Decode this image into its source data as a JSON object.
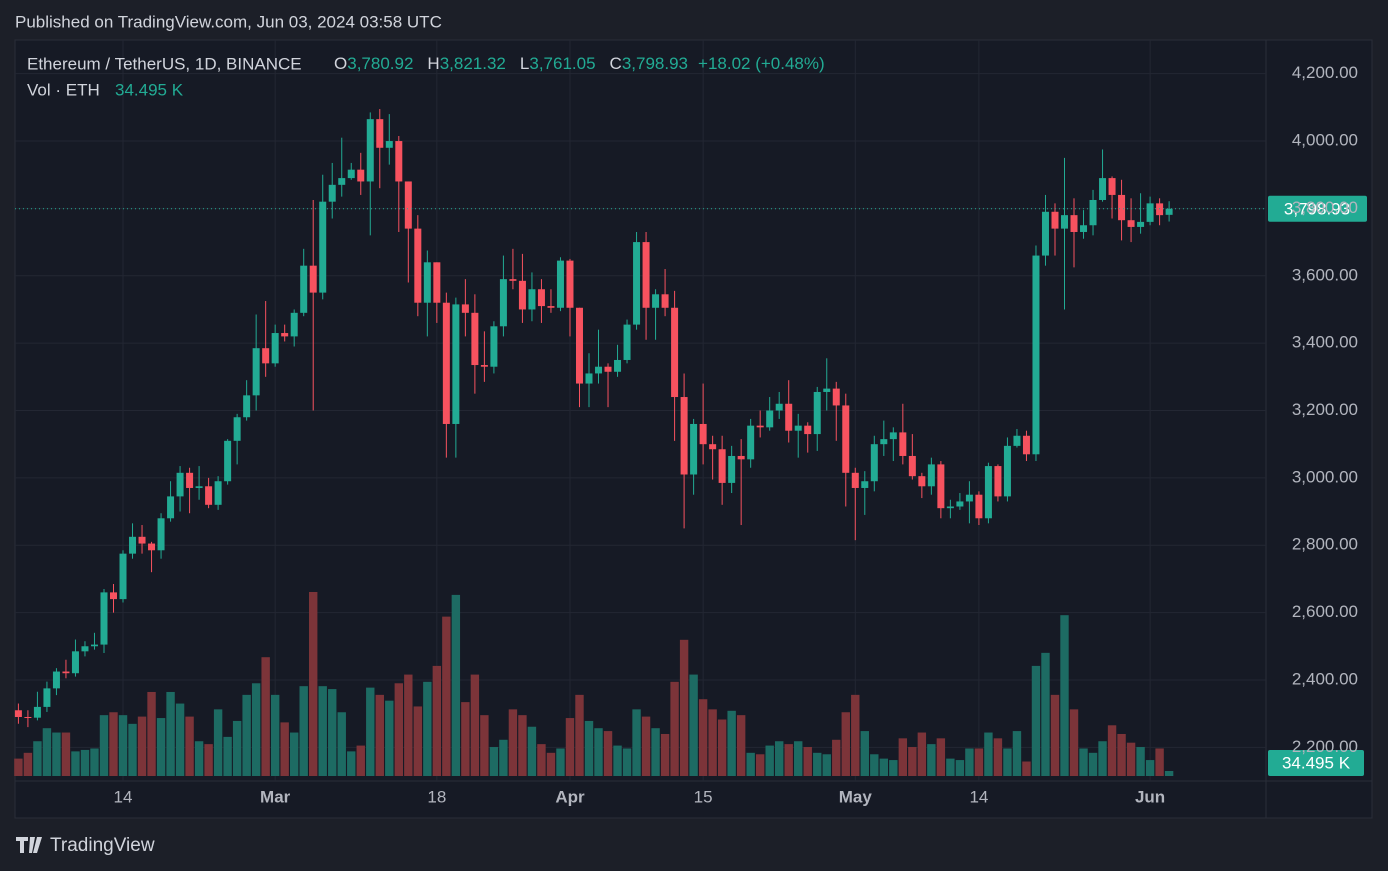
{
  "published": "Published on TradingView.com, Jun 03, 2024 03:58 UTC",
  "brand": "TradingView",
  "chart_data": {
    "type": "candlestick",
    "header": {
      "symbol": "Ethereum / TetherUS, 1D, BINANCE",
      "ohlc": [
        {
          "key": "O",
          "label": "3,780.92"
        },
        {
          "key": "H",
          "label": "3,821.32"
        },
        {
          "key": "L",
          "label": "3,761.05"
        },
        {
          "key": "C",
          "label": "3,798.93"
        }
      ],
      "change": "+18.02 (+0.48%)",
      "vol_label": "Vol · ETH",
      "vol_value": "34.495 K"
    },
    "price_label": "3,798.93",
    "up_color": "#22ab94",
    "down_color": "#f7525f",
    "vol_up_color": "#1d6b63",
    "vol_down_color": "#7c3439",
    "grid": true,
    "ylim": [
      2100,
      4300
    ],
    "yticks": [
      {
        "value": 2200,
        "label": "2,200.00"
      },
      {
        "value": 2400,
        "label": "2,400.00"
      },
      {
        "value": 2600,
        "label": "2,600.00"
      },
      {
        "value": 2800,
        "label": "2,800.00"
      },
      {
        "value": 3000,
        "label": "3,000.00"
      },
      {
        "value": 3200,
        "label": "3,200.00"
      },
      {
        "value": 3400,
        "label": "3,400.00"
      },
      {
        "value": 3600,
        "label": "3,600.00"
      },
      {
        "value": 3800,
        "label": "3,800.00"
      },
      {
        "value": 4000,
        "label": "4,000.00"
      },
      {
        "value": 4200,
        "label": "4,200.00"
      }
    ],
    "xticks": [
      {
        "value": "2024-02-14",
        "label": "14"
      },
      {
        "value": "2024-03-01",
        "label": "Mar"
      },
      {
        "value": "2024-03-18",
        "label": "18"
      },
      {
        "value": "2024-04-01",
        "label": "Apr"
      },
      {
        "value": "2024-04-15",
        "label": "15"
      },
      {
        "value": "2024-05-01",
        "label": "May"
      },
      {
        "value": "2024-05-14",
        "label": "14"
      },
      {
        "value": "2024-06-01",
        "label": "Jun"
      }
    ],
    "x": [
      "2024-02-03",
      "2024-02-04",
      "2024-02-05",
      "2024-02-06",
      "2024-02-07",
      "2024-02-08",
      "2024-02-09",
      "2024-02-10",
      "2024-02-11",
      "2024-02-12",
      "2024-02-13",
      "2024-02-14",
      "2024-02-15",
      "2024-02-16",
      "2024-02-17",
      "2024-02-18",
      "2024-02-19",
      "2024-02-20",
      "2024-02-21",
      "2024-02-22",
      "2024-02-23",
      "2024-02-24",
      "2024-02-25",
      "2024-02-26",
      "2024-02-27",
      "2024-02-28",
      "2024-02-29",
      "2024-03-01",
      "2024-03-02",
      "2024-03-03",
      "2024-03-04",
      "2024-03-05",
      "2024-03-06",
      "2024-03-07",
      "2024-03-08",
      "2024-03-09",
      "2024-03-10",
      "2024-03-11",
      "2024-03-12",
      "2024-03-13",
      "2024-03-14",
      "2024-03-15",
      "2024-03-16",
      "2024-03-17",
      "2024-03-18",
      "2024-03-19",
      "2024-03-20",
      "2024-03-21",
      "2024-03-22",
      "2024-03-23",
      "2024-03-24",
      "2024-03-25",
      "2024-03-26",
      "2024-03-27",
      "2024-03-28",
      "2024-03-29",
      "2024-03-30",
      "2024-03-31",
      "2024-04-01",
      "2024-04-02",
      "2024-04-03",
      "2024-04-04",
      "2024-04-05",
      "2024-04-06",
      "2024-04-07",
      "2024-04-08",
      "2024-04-09",
      "2024-04-10",
      "2024-04-11",
      "2024-04-12",
      "2024-04-13",
      "2024-04-14",
      "2024-04-15",
      "2024-04-16",
      "2024-04-17",
      "2024-04-18",
      "2024-04-19",
      "2024-04-20",
      "2024-04-21",
      "2024-04-22",
      "2024-04-23",
      "2024-04-24",
      "2024-04-25",
      "2024-04-26",
      "2024-04-27",
      "2024-04-28",
      "2024-04-29",
      "2024-04-30",
      "2024-05-01",
      "2024-05-02",
      "2024-05-03",
      "2024-05-04",
      "2024-05-05",
      "2024-05-06",
      "2024-05-07",
      "2024-05-08",
      "2024-05-09",
      "2024-05-10",
      "2024-05-11",
      "2024-05-12",
      "2024-05-13",
      "2024-05-14",
      "2024-05-15",
      "2024-05-16",
      "2024-05-17",
      "2024-05-18",
      "2024-05-19",
      "2024-05-20",
      "2024-05-21",
      "2024-05-22",
      "2024-05-23",
      "2024-05-24",
      "2024-05-25",
      "2024-05-26",
      "2024-05-27",
      "2024-05-28",
      "2024-05-29",
      "2024-05-30",
      "2024-05-31",
      "2024-06-01",
      "2024-06-02",
      "2024-06-03"
    ],
    "open": [
      2310,
      2290,
      2288,
      2320,
      2375,
      2425,
      2420,
      2485,
      2500,
      2505,
      2660,
      2640,
      2775,
      2825,
      2805,
      2785,
      2880,
      2945,
      3015,
      2970,
      2975,
      2920,
      2990,
      3110,
      3180,
      3245,
      3385,
      3340,
      3430,
      3420,
      3490,
      3630,
      3550,
      3820,
      3870,
      3890,
      3915,
      3880,
      4065,
      3980,
      4000,
      3880,
      3740,
      3520,
      3640,
      3520,
      3160,
      3515,
      3490,
      3335,
      3330,
      3450,
      3590,
      3585,
      3500,
      3560,
      3510,
      3505,
      3645,
      3505,
      3280,
      3310,
      3330,
      3315,
      3350,
      3455,
      3700,
      3505,
      3545,
      3505,
      3240,
      3010,
      3160,
      3100,
      3085,
      2985,
      3065,
      3055,
      3155,
      3150,
      3200,
      3220,
      3140,
      3155,
      3130,
      3255,
      3265,
      3215,
      3015,
      2970,
      2990,
      3100,
      3115,
      3135,
      3065,
      3005,
      2975,
      3040,
      2910,
      2915,
      2930,
      2950,
      2880,
      3035,
      2945,
      3095,
      3125,
      3070,
      3660,
      3790,
      3740,
      3780,
      3730,
      3750,
      3825,
      3890,
      3840,
      3765,
      3745,
      3760,
      3815,
      3780.92
    ],
    "high": [
      2330,
      2310,
      2365,
      2395,
      2435,
      2460,
      2520,
      2515,
      2540,
      2670,
      2685,
      2785,
      2865,
      2860,
      2810,
      2895,
      2990,
      3035,
      3030,
      3035,
      3000,
      3005,
      3115,
      3190,
      3290,
      3485,
      3525,
      3455,
      3455,
      3500,
      3680,
      3825,
      3900,
      3935,
      4010,
      3935,
      3965,
      4085,
      4095,
      4080,
      4015,
      3880,
      3780,
      3675,
      3640,
      3550,
      3535,
      3590,
      3545,
      3435,
      3465,
      3660,
      3680,
      3665,
      3610,
      3590,
      3560,
      3655,
      3650,
      3505,
      3370,
      3440,
      3340,
      3395,
      3470,
      3730,
      3730,
      3560,
      3620,
      3555,
      3310,
      3175,
      3280,
      3125,
      3125,
      3095,
      3115,
      3175,
      3200,
      3240,
      3255,
      3290,
      3190,
      3165,
      3270,
      3355,
      3285,
      3250,
      3030,
      3020,
      3125,
      3170,
      3150,
      3220,
      3130,
      3015,
      3060,
      3050,
      2935,
      2955,
      2990,
      2960,
      3045,
      3040,
      3120,
      3145,
      3140,
      3690,
      3840,
      3815,
      3950,
      3830,
      3795,
      3855,
      3975,
      3895,
      3885,
      3830,
      3845,
      3835,
      3830,
      3821.32
    ],
    "low": [
      2270,
      2260,
      2280,
      2305,
      2355,
      2405,
      2410,
      2470,
      2490,
      2480,
      2600,
      2630,
      2760,
      2775,
      2720,
      2760,
      2870,
      2900,
      2895,
      2935,
      2910,
      2905,
      2980,
      3040,
      3170,
      3200,
      3300,
      3330,
      3405,
      3390,
      3480,
      3200,
      3530,
      3770,
      3835,
      3885,
      3840,
      3720,
      3860,
      3930,
      3730,
      3580,
      3480,
      3420,
      3460,
      3060,
      3060,
      3420,
      3250,
      3285,
      3310,
      3420,
      3560,
      3460,
      3465,
      3460,
      3490,
      3495,
      3420,
      3210,
      3210,
      3280,
      3210,
      3300,
      3340,
      3440,
      3410,
      3410,
      3480,
      3110,
      2850,
      2950,
      3040,
      2995,
      2920,
      2955,
      2860,
      3030,
      3120,
      3140,
      3175,
      3105,
      3060,
      3075,
      3080,
      3200,
      3110,
      2915,
      2815,
      2890,
      2960,
      3065,
      3050,
      3040,
      2995,
      2940,
      2950,
      2880,
      2880,
      2905,
      2865,
      2860,
      2865,
      2930,
      2930,
      3090,
      3050,
      3050,
      3630,
      3660,
      3500,
      3625,
      3710,
      3720,
      3820,
      3770,
      3705,
      3700,
      3725,
      3750,
      3750,
      3761.05
    ],
    "close": [
      2290,
      2288,
      2320,
      2375,
      2425,
      2420,
      2485,
      2500,
      2505,
      2660,
      2640,
      2775,
      2825,
      2805,
      2785,
      2880,
      2945,
      3015,
      2970,
      2975,
      2920,
      2990,
      3110,
      3180,
      3245,
      3385,
      3340,
      3430,
      3420,
      3490,
      3630,
      3550,
      3820,
      3870,
      3890,
      3915,
      3880,
      4065,
      3980,
      4000,
      3880,
      3740,
      3520,
      3640,
      3520,
      3160,
      3515,
      3490,
      3335,
      3330,
      3450,
      3590,
      3585,
      3500,
      3560,
      3510,
      3505,
      3645,
      3505,
      3280,
      3310,
      3330,
      3315,
      3350,
      3455,
      3700,
      3505,
      3545,
      3505,
      3240,
      3010,
      3160,
      3100,
      3085,
      2985,
      3065,
      3055,
      3155,
      3150,
      3200,
      3220,
      3140,
      3155,
      3130,
      3255,
      3265,
      3215,
      3015,
      2970,
      2990,
      3100,
      3115,
      3135,
      3065,
      3005,
      2975,
      3040,
      2910,
      2915,
      2930,
      2950,
      2880,
      3035,
      2945,
      3095,
      3125,
      3070,
      3660,
      3790,
      3740,
      3780,
      3730,
      3750,
      3825,
      3890,
      3840,
      3765,
      3745,
      3760,
      3815,
      3780,
      3798.93
    ],
    "volume": [
      120,
      160,
      240,
      330,
      300,
      300,
      170,
      180,
      190,
      420,
      440,
      420,
      360,
      410,
      580,
      400,
      580,
      500,
      410,
      240,
      220,
      460,
      270,
      380,
      560,
      640,
      820,
      560,
      370,
      300,
      620,
      1270,
      620,
      600,
      440,
      170,
      210,
      610,
      560,
      520,
      640,
      700,
      480,
      650,
      760,
      1100,
      1250,
      510,
      700,
      420,
      200,
      250,
      460,
      420,
      340,
      220,
      160,
      190,
      400,
      560,
      380,
      330,
      310,
      210,
      190,
      460,
      410,
      330,
      290,
      650,
      940,
      700,
      530,
      460,
      390,
      450,
      420,
      160,
      150,
      210,
      240,
      220,
      240,
      200,
      160,
      150,
      250,
      440,
      560,
      310,
      150,
      120,
      110,
      260,
      200,
      300,
      220,
      260,
      120,
      110,
      190,
      190,
      300,
      260,
      190,
      310,
      100,
      760,
      850,
      560,
      1110,
      460,
      190,
      160,
      240,
      350,
      290,
      230,
      200,
      110,
      190,
      34.495
    ]
  }
}
